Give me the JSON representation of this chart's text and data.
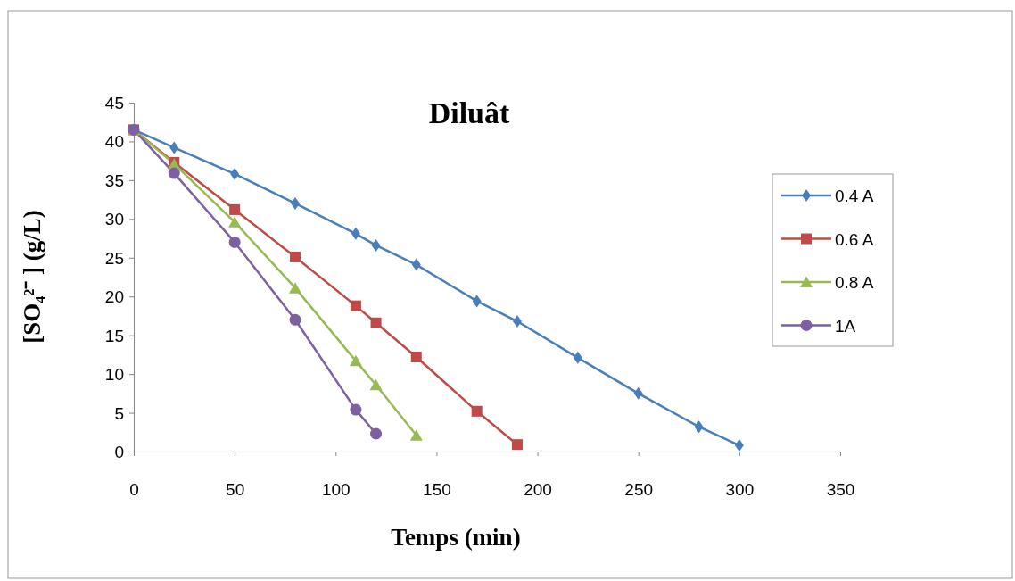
{
  "chart_data": {
    "type": "line",
    "title": "Diluât",
    "xlabel": "Temps (min)",
    "ylabel": "[SO₄²⁻ ] (g/L)",
    "xlim": [
      0,
      350
    ],
    "xticks": [
      0,
      50,
      100,
      150,
      200,
      250,
      300,
      350
    ],
    "ylim": [
      0,
      45
    ],
    "yticks": [
      0,
      5,
      10,
      15,
      20,
      25,
      30,
      35,
      40,
      45
    ],
    "grid": false,
    "legend": "right",
    "line_style": "solid",
    "series": [
      {
        "name": "0.4 A",
        "color": "#4a7ebb",
        "marker": "diamond",
        "x": [
          0,
          20,
          50,
          80,
          110,
          120,
          140,
          170,
          190,
          220,
          250,
          280,
          300
        ],
        "values": [
          41.5,
          39.2,
          35.8,
          32.0,
          28.1,
          26.6,
          24.1,
          19.4,
          16.8,
          12.1,
          7.5,
          3.2,
          0.8
        ]
      },
      {
        "name": "0.6 A",
        "color": "#be4b48",
        "marker": "square",
        "x": [
          0,
          20,
          50,
          80,
          110,
          120,
          140,
          170,
          190
        ],
        "values": [
          41.5,
          37.3,
          31.2,
          25.1,
          18.8,
          16.6,
          12.2,
          5.2,
          0.9
        ]
      },
      {
        "name": "0.8 A",
        "color": "#98b954",
        "marker": "triangle",
        "x": [
          0,
          20,
          50,
          80,
          110,
          120,
          140
        ],
        "values": [
          41.5,
          37.1,
          29.6,
          21.1,
          11.7,
          8.6,
          2.1
        ]
      },
      {
        "name": "1A",
        "color": "#7d60a0",
        "marker": "circle",
        "x": [
          0,
          20,
          50,
          80,
          110,
          120
        ],
        "values": [
          41.5,
          35.9,
          27.0,
          17.0,
          5.4,
          2.3
        ]
      }
    ]
  }
}
